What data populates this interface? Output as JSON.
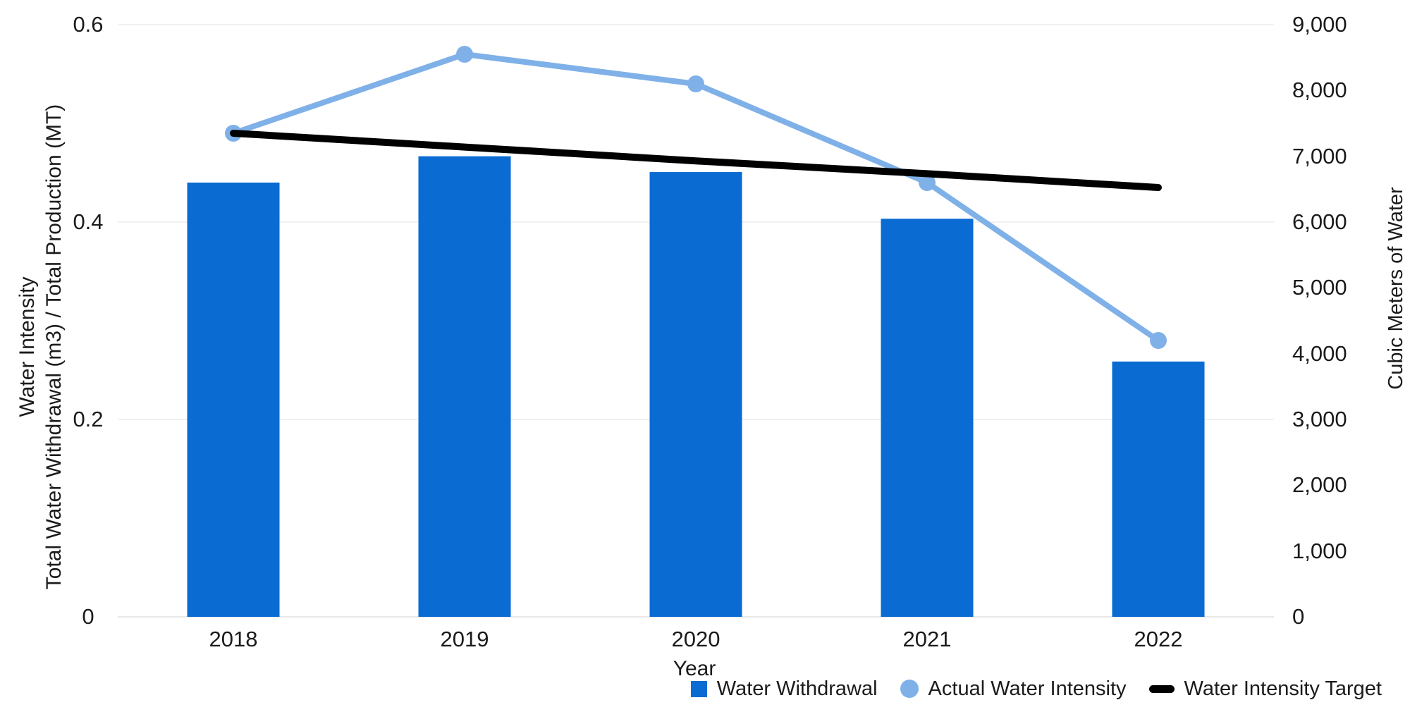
{
  "chart_data": {
    "type": "combo-bar-line",
    "categories": [
      "2018",
      "2019",
      "2020",
      "2021",
      "2022"
    ],
    "series": [
      {
        "name": "Water Withdrawal",
        "type": "bar",
        "axis": "right",
        "color": "#0a6bd2",
        "values": [
          6600,
          7000,
          6760,
          6050,
          3880
        ]
      },
      {
        "name": "Actual Water Intensity",
        "type": "line",
        "axis": "left",
        "color": "#7fb1e8",
        "marker": "circle",
        "values": [
          0.49,
          0.57,
          0.54,
          0.44,
          0.28
        ]
      },
      {
        "name": "Water Intensity Target",
        "type": "line",
        "axis": "left",
        "color": "#000000",
        "marker": "none",
        "values": [
          0.49,
          0.476,
          0.462,
          0.449,
          0.435
        ]
      }
    ],
    "x_axis": {
      "title": "Year",
      "tick_labels": [
        "2018",
        "2019",
        "2020",
        "2021",
        "2022"
      ]
    },
    "left_axis": {
      "title_lines": [
        "Water Intensity",
        "Total Water Withdrawal (m3) / Total Production (MT)"
      ],
      "min": 0,
      "max": 0.6,
      "tick_labels": [
        "0",
        "0.2",
        "0.4",
        "0.6"
      ]
    },
    "right_axis": {
      "title": "Cubic Meters of Water",
      "min": 0,
      "max": 9000,
      "tick_labels": [
        "0",
        "1,000",
        "2,000",
        "3,000",
        "4,000",
        "5,000",
        "6,000",
        "7,000",
        "8,000",
        "9,000"
      ]
    },
    "legend": {
      "position": "bottom-right",
      "items": [
        "Water Withdrawal",
        "Actual Water Intensity",
        "Water Intensity Target"
      ]
    },
    "grid": {
      "horizontal_gridlines_at_left_ticks": true,
      "gridline_color": "#f1f1f1",
      "baseline_color": "#e7e7e7"
    }
  }
}
